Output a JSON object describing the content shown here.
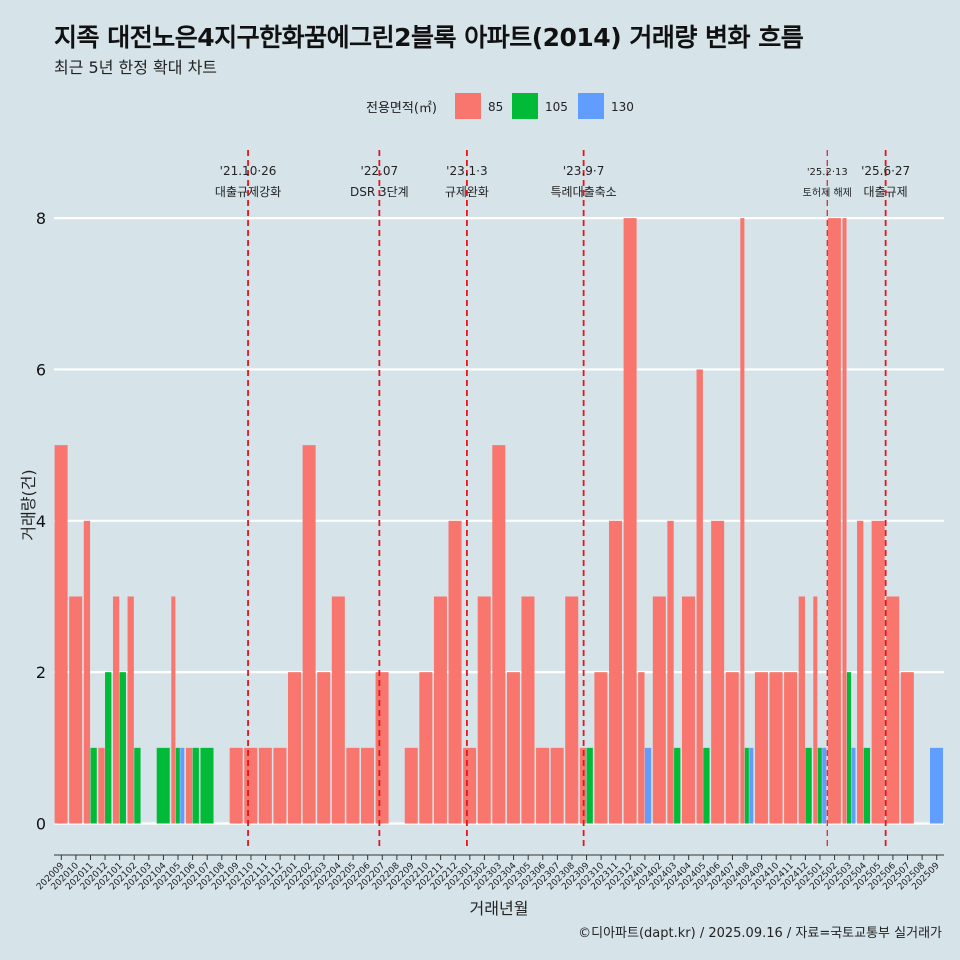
{
  "title": "지족 대전노은4지구한화꿈에그린2블록 아파트(2014) 거래량 변화 흐름",
  "subtitle": "최근 5년 한정 확대 차트",
  "caption": "©디아파트(dapt.kr) / 2025.09.16 / 자료=국토교통부 실거래가",
  "chart_data": {
    "type": "bar",
    "xlabel": "거래년월",
    "ylabel": "거래량(건)",
    "ylim": [
      -0.35,
      8.9
    ],
    "yticks": [
      0,
      2,
      4,
      6,
      8
    ],
    "grid": true,
    "legend": {
      "title": "전용면적(㎡)",
      "position": "top",
      "items": [
        {
          "name": "85",
          "color": "#f8766d"
        },
        {
          "name": "105",
          "color": "#00ba38"
        },
        {
          "name": "130",
          "color": "#619cff"
        }
      ]
    },
    "categories": [
      "202009",
      "202010",
      "202011",
      "202012",
      "202101",
      "202102",
      "202103",
      "202104",
      "202105",
      "202106",
      "202107",
      "202108",
      "202109",
      "202110",
      "202111",
      "202112",
      "202201",
      "202202",
      "202203",
      "202204",
      "202205",
      "202206",
      "202207",
      "202208",
      "202209",
      "202210",
      "202211",
      "202212",
      "202301",
      "202302",
      "202303",
      "202304",
      "202305",
      "202306",
      "202307",
      "202308",
      "202309",
      "202310",
      "202311",
      "202312",
      "202401",
      "202402",
      "202403",
      "202404",
      "202405",
      "202406",
      "202407",
      "202408",
      "202409",
      "202410",
      "202411",
      "202412",
      "202501",
      "202502",
      "202503",
      "202504",
      "202505",
      "202506",
      "202507",
      "202508",
      "202509"
    ],
    "series": [
      {
        "name": "85",
        "values": [
          5,
          3,
          4,
          1,
          3,
          3,
          0,
          0,
          3,
          1,
          0,
          0,
          1,
          1,
          1,
          1,
          2,
          5,
          2,
          3,
          1,
          1,
          2,
          0,
          1,
          2,
          3,
          4,
          1,
          3,
          5,
          2,
          3,
          1,
          1,
          3,
          1,
          2,
          4,
          8,
          2,
          3,
          4,
          3,
          6,
          4,
          2,
          8,
          2,
          2,
          2,
          3,
          3,
          8,
          8,
          4,
          4,
          3,
          2,
          0,
          0
        ]
      },
      {
        "name": "105",
        "values": [
          0,
          0,
          1,
          2,
          2,
          1,
          0,
          1,
          1,
          1,
          1,
          0,
          0,
          0,
          0,
          0,
          0,
          0,
          0,
          0,
          0,
          0,
          0,
          0,
          0,
          0,
          0,
          0,
          0,
          0,
          0,
          0,
          0,
          0,
          0,
          0,
          1,
          0,
          0,
          0,
          0,
          0,
          1,
          0,
          1,
          0,
          0,
          1,
          0,
          0,
          0,
          1,
          1,
          0,
          2,
          1,
          0,
          0,
          0,
          0,
          0
        ]
      },
      {
        "name": "130",
        "values": [
          0,
          0,
          0,
          0,
          0,
          0,
          0,
          0,
          1,
          0,
          0,
          0,
          0,
          0,
          0,
          0,
          0,
          0,
          0,
          0,
          0,
          0,
          0,
          0,
          0,
          0,
          0,
          0,
          0,
          0,
          0,
          0,
          0,
          0,
          0,
          0,
          0,
          0,
          0,
          0,
          1,
          0,
          0,
          0,
          0,
          0,
          0,
          1,
          0,
          0,
          0,
          0,
          1,
          0,
          1,
          0,
          0,
          0,
          0,
          0,
          1
        ]
      }
    ],
    "annotations": [
      {
        "date": "'21.10·26",
        "label": "대출규제강화",
        "at": 13.3
      },
      {
        "date": "'22.07",
        "label": "DSR 3단계",
        "at": 22.3
      },
      {
        "date": "'23.1·3",
        "label": "규제완화",
        "at": 28.3
      },
      {
        "date": "'23.9·7",
        "label": "특례대출축소",
        "at": 36.3
      },
      {
        "date": "'25.2·13",
        "label": "토허제 해제",
        "at": 53.0,
        "small": true
      },
      {
        "date": "'25.6·27",
        "label": "대출규제",
        "at": 57.0
      }
    ]
  }
}
